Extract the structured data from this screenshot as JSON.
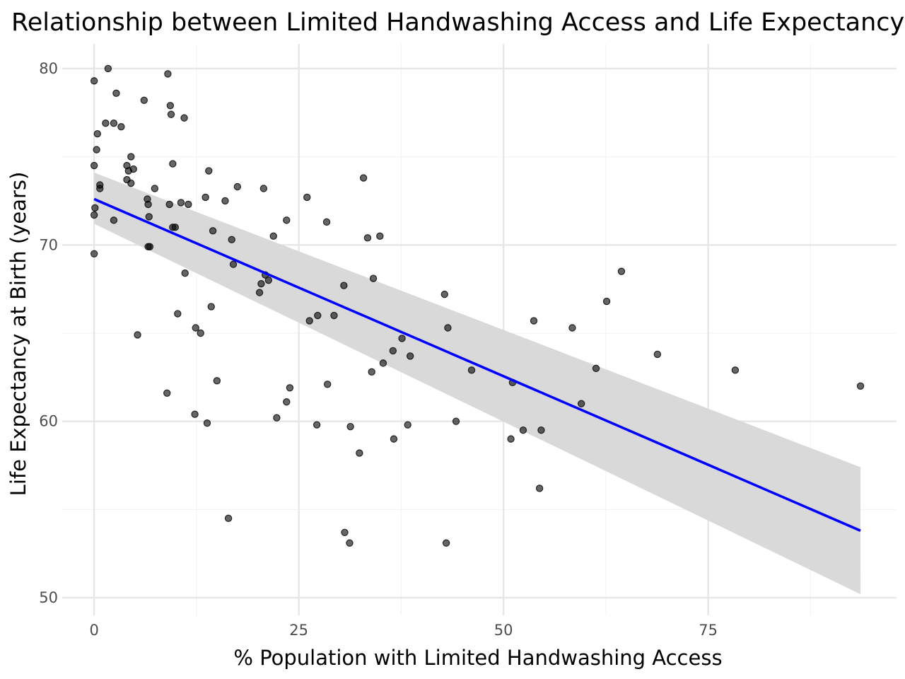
{
  "chart_data": {
    "type": "scatter",
    "title": "Relationship between Limited Handwashing Access and Life Expectancy",
    "xlabel": "% Population with Limited Handwashing Access",
    "ylabel": "Life Expectancy at Birth (years)",
    "xlim": [
      -3.9,
      98.0
    ],
    "ylim": [
      49.0,
      81.4
    ],
    "x_ticks": [
      0,
      25,
      50,
      75
    ],
    "y_ticks": [
      50,
      60,
      70,
      80
    ],
    "x_tick_labels": [
      "0",
      "25",
      "50",
      "75"
    ],
    "y_tick_labels": [
      "50",
      "60",
      "70",
      "80"
    ],
    "grid": true,
    "legend": "none",
    "colors": {
      "points": "#000000",
      "trend": "#0000ff",
      "ribbon": "#d9d9d9",
      "grid_major": "#e6e6e6",
      "grid_minor": "#f4f4f4"
    },
    "trend_line": {
      "type": "linear",
      "x": [
        0,
        93.6
      ],
      "y": [
        72.6,
        53.8
      ],
      "ci_lower": [
        71.2,
        50.2
      ],
      "ci_upper": [
        74.1,
        57.4
      ]
    },
    "points": [
      [
        0,
        79.3
      ],
      [
        1.7,
        80.0
      ],
      [
        9.0,
        79.7
      ],
      [
        2.7,
        78.6
      ],
      [
        6.1,
        78.2
      ],
      [
        9.3,
        77.9
      ],
      [
        9.4,
        77.4
      ],
      [
        11.0,
        77.2
      ],
      [
        1.4,
        76.9
      ],
      [
        2.4,
        76.9
      ],
      [
        3.3,
        76.7
      ],
      [
        0.4,
        76.3
      ],
      [
        0.3,
        75.4
      ],
      [
        4.5,
        75.0
      ],
      [
        0,
        74.5
      ],
      [
        4.0,
        74.5
      ],
      [
        4.2,
        74.2
      ],
      [
        4.8,
        74.3
      ],
      [
        9.6,
        74.6
      ],
      [
        14.0,
        74.2
      ],
      [
        4.0,
        73.7
      ],
      [
        4.5,
        73.5
      ],
      [
        0.7,
        73.4
      ],
      [
        0.7,
        73.2
      ],
      [
        7.4,
        73.2
      ],
      [
        17.5,
        73.3
      ],
      [
        20.7,
        73.2
      ],
      [
        32.9,
        73.8
      ],
      [
        13.6,
        72.7
      ],
      [
        6.5,
        72.6
      ],
      [
        26.0,
        72.7
      ],
      [
        16.0,
        72.5
      ],
      [
        6.6,
        72.3
      ],
      [
        9.2,
        72.3
      ],
      [
        10.6,
        72.4
      ],
      [
        11.5,
        72.3
      ],
      [
        0.1,
        72.1
      ],
      [
        0,
        71.7
      ],
      [
        2.4,
        71.4
      ],
      [
        6.7,
        71.6
      ],
      [
        23.5,
        71.4
      ],
      [
        28.4,
        71.3
      ],
      [
        9.6,
        71.0
      ],
      [
        9.9,
        71.0
      ],
      [
        14.5,
        70.8
      ],
      [
        21.9,
        70.5
      ],
      [
        33.4,
        70.4
      ],
      [
        34.9,
        70.5
      ],
      [
        16.8,
        70.3
      ],
      [
        6.6,
        69.9
      ],
      [
        6.8,
        69.9
      ],
      [
        0,
        69.5
      ],
      [
        17.0,
        68.9
      ],
      [
        11.1,
        68.4
      ],
      [
        20.9,
        68.3
      ],
      [
        21.3,
        68.0
      ],
      [
        20.4,
        67.8
      ],
      [
        20.2,
        67.3
      ],
      [
        30.5,
        67.7
      ],
      [
        34.1,
        68.1
      ],
      [
        42.8,
        67.2
      ],
      [
        64.4,
        68.5
      ],
      [
        14.3,
        66.5
      ],
      [
        10.2,
        66.1
      ],
      [
        27.3,
        66.0
      ],
      [
        29.3,
        66.0
      ],
      [
        26.3,
        65.7
      ],
      [
        62.6,
        66.8
      ],
      [
        53.7,
        65.7
      ],
      [
        12.4,
        65.3
      ],
      [
        43.2,
        65.3
      ],
      [
        58.4,
        65.3
      ],
      [
        13.0,
        65.0
      ],
      [
        5.3,
        64.9
      ],
      [
        37.6,
        64.7
      ],
      [
        36.5,
        64.0
      ],
      [
        38.6,
        63.7
      ],
      [
        68.8,
        63.8
      ],
      [
        35.3,
        63.3
      ],
      [
        46.1,
        62.9
      ],
      [
        61.3,
        63.0
      ],
      [
        78.3,
        62.9
      ],
      [
        33.9,
        62.8
      ],
      [
        15.0,
        62.3
      ],
      [
        28.5,
        62.1
      ],
      [
        51.1,
        62.2
      ],
      [
        93.6,
        62.0
      ],
      [
        23.9,
        61.9
      ],
      [
        8.9,
        61.6
      ],
      [
        23.5,
        61.1
      ],
      [
        59.5,
        61.0
      ],
      [
        12.3,
        60.4
      ],
      [
        22.3,
        60.2
      ],
      [
        13.8,
        59.9
      ],
      [
        27.2,
        59.8
      ],
      [
        31.3,
        59.7
      ],
      [
        38.3,
        59.8
      ],
      [
        44.2,
        60.0
      ],
      [
        52.4,
        59.5
      ],
      [
        54.6,
        59.5
      ],
      [
        36.6,
        59.0
      ],
      [
        50.9,
        59.0
      ],
      [
        32.4,
        58.2
      ],
      [
        54.4,
        56.2
      ],
      [
        16.4,
        54.5
      ],
      [
        30.6,
        53.7
      ],
      [
        31.2,
        53.1
      ],
      [
        43.0,
        53.1
      ]
    ]
  }
}
